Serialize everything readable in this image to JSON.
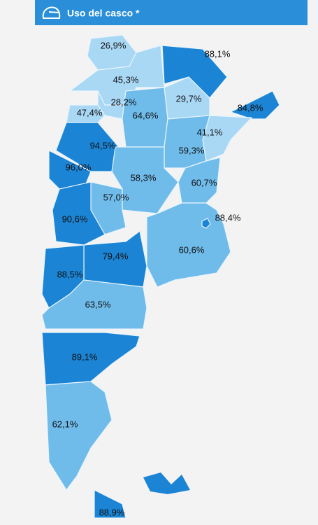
{
  "header": {
    "title": "Uso del casco *"
  },
  "regions": [
    {
      "label": "26,9%",
      "color": "#a9d8f5"
    },
    {
      "label": "45,3%",
      "color": "#a9d8f5"
    },
    {
      "label": "88,1%",
      "color": "#1b84d4"
    },
    {
      "label": "29,7%",
      "color": "#a9d8f5"
    },
    {
      "label": "84,8%",
      "color": "#1b84d4"
    },
    {
      "label": "28,2%",
      "color": "#a9d8f5"
    },
    {
      "label": "47,4%",
      "color": "#a9d8f5"
    },
    {
      "label": "64,6%",
      "color": "#6fbbea"
    },
    {
      "label": "41,1%",
      "color": "#a9d8f5"
    },
    {
      "label": "59,3%",
      "color": "#6fbbea"
    },
    {
      "label": "94,5%",
      "color": "#1b84d4"
    },
    {
      "label": "96,0%",
      "color": "#1b84d4"
    },
    {
      "label": "58,3%",
      "color": "#6fbbea"
    },
    {
      "label": "60,7%",
      "color": "#6fbbea"
    },
    {
      "label": "57,0%",
      "color": "#6fbbea"
    },
    {
      "label": "90,6%",
      "color": "#1b84d4"
    },
    {
      "label": "88,4%",
      "color": "#1b84d4"
    },
    {
      "label": "60,6%",
      "color": "#6fbbea"
    },
    {
      "label": "79,4%",
      "color": "#1b84d4"
    },
    {
      "label": "88,5%",
      "color": "#1b84d4"
    },
    {
      "label": "63,5%",
      "color": "#6fbbea"
    },
    {
      "label": "89,1%",
      "color": "#1b84d4"
    },
    {
      "label": "62,1%",
      "color": "#6fbbea"
    },
    {
      "label": "88,9%",
      "color": "#1b84d4"
    }
  ]
}
